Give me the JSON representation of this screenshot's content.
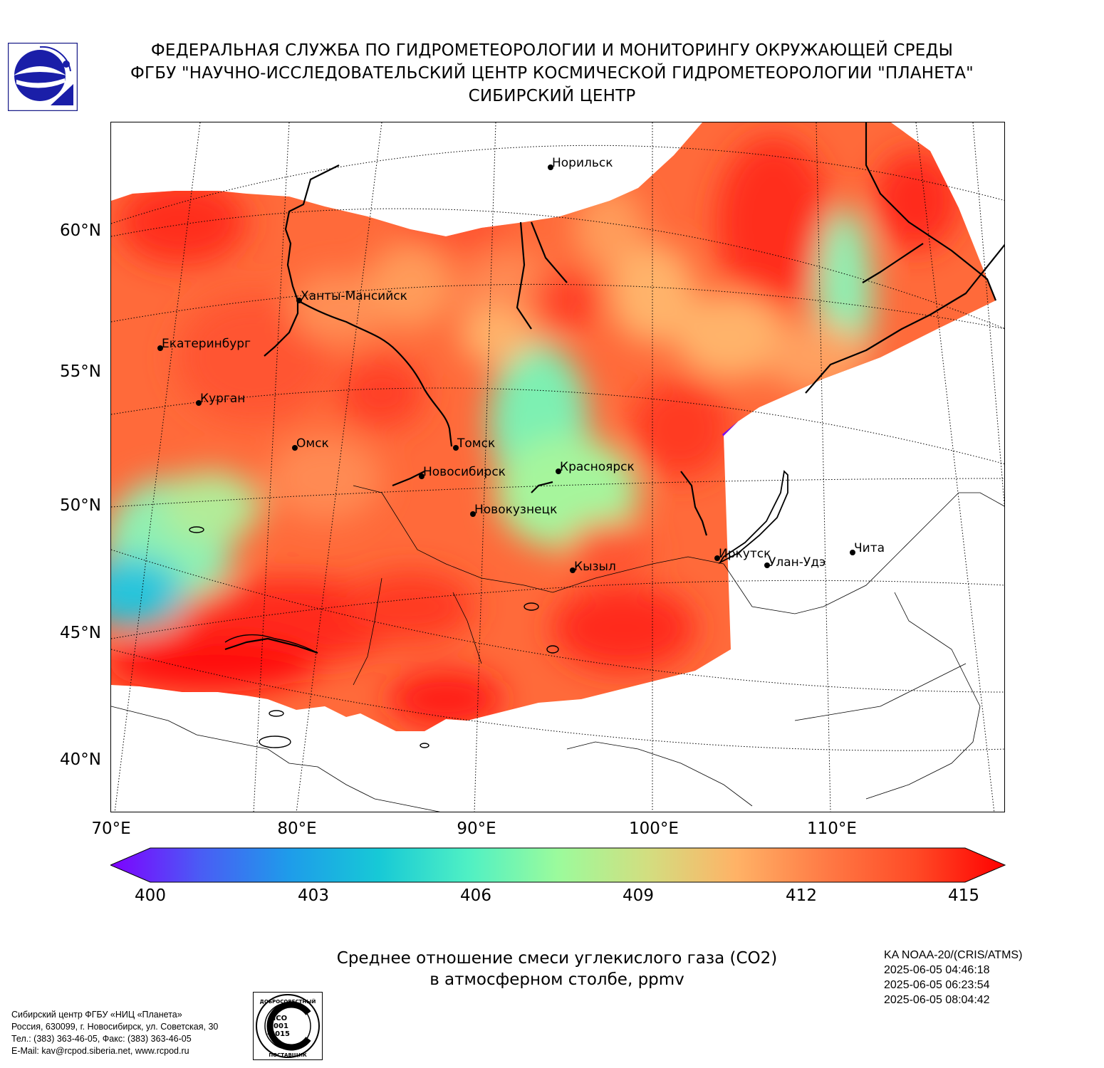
{
  "header": {
    "line1": "ФЕДЕРАЛЬНАЯ СЛУЖБА ПО ГИДРОМЕТЕОРОЛОГИИ И МОНИТОРИНГУ ОКРУЖАЮЩЕЙ СРЕДЫ",
    "line2": "ФГБУ \"НАУЧНО-ИССЛЕДОВАТЕЛЬСКИЙ ЦЕНТР КОСМИЧЕСКОЙ ГИДРОМЕТЕОРОЛОГИИ \"ПЛАНЕТА\"",
    "line3": "СИБИРСКИЙ ЦЕНТР"
  },
  "map": {
    "lat_labels": [
      "60°N",
      "55°N",
      "50°N",
      "45°N",
      "40°N"
    ],
    "lon_labels": [
      "70°E",
      "80°E",
      "90°E",
      "100°E",
      "110°E"
    ],
    "cities": [
      {
        "name": "Норильск"
      },
      {
        "name": "Ханты-Мансийск"
      },
      {
        "name": "Екатеринбург"
      },
      {
        "name": "Курган"
      },
      {
        "name": "Омск"
      },
      {
        "name": "Томск"
      },
      {
        "name": "Новосибирск"
      },
      {
        "name": "Красноярск"
      },
      {
        "name": "Новокузнецк"
      },
      {
        "name": "Иркутск"
      },
      {
        "name": "Улан-Удэ"
      },
      {
        "name": "Чита"
      },
      {
        "name": "Кызыл"
      }
    ]
  },
  "colorbar": {
    "ticks": [
      "400",
      "403",
      "406",
      "409",
      "412",
      "415"
    ],
    "min": 400,
    "max": 415,
    "colors": [
      "#7f00ff",
      "#4a5cf5",
      "#1e9cea",
      "#17c9d6",
      "#4ff0c4",
      "#9bfb9c",
      "#d2de80",
      "#ffb266",
      "#ff7a45",
      "#ff4a26",
      "#ff0000"
    ]
  },
  "caption": {
    "line1": "Среднее отношение смеси углекислого газа (CO2)",
    "line2": "в атмосферном столбе, ppmv"
  },
  "satellite": {
    "instrument": "KA NOAA-20/(CRIS/ATMS)",
    "times": [
      "2025-06-05 04:46:18",
      "2025-06-05 06:23:54",
      "2025-06-05 08:04:42"
    ]
  },
  "address": {
    "line1": "Сибирский центр ФГБУ «НИЦ «Планета»",
    "line2": "Россия, 630099, г. Новосибирск, ул. Советская, 30",
    "line3": "Тел.: (383) 363-46-05, Факс: (383) 363-46-05",
    "line4": "E-Mail: kav@rcpod.siberia.net, www.rcpod.ru"
  },
  "seal": {
    "top_text": "ДОБРОСОВЕСТНЫЙ",
    "iso_text": "ИСО 9001 -2015",
    "bottom_text": "ПОСТАВЩИК"
  },
  "icons": [
    "roshydromet-logo",
    "iso-9001-seal"
  ]
}
